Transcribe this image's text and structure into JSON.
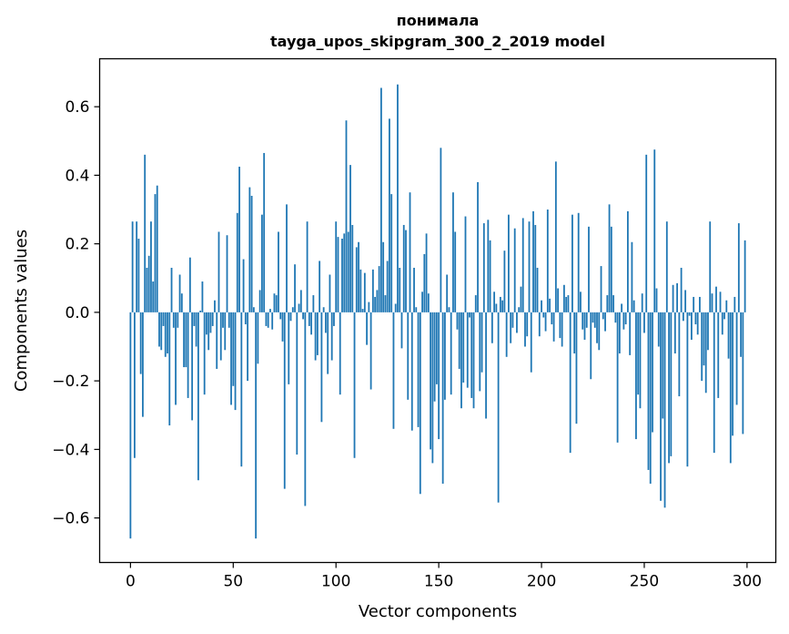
{
  "chart_data": {
    "type": "bar",
    "title": "понимала",
    "subtitle": "tayga_upos_skipgram_300_2_2019 model",
    "xlabel": "Vector components",
    "ylabel": "Components values",
    "xlim": [
      -15,
      314
    ],
    "ylim": [
      -0.73,
      0.74
    ],
    "x_ticks": [
      0,
      50,
      100,
      150,
      200,
      250,
      300
    ],
    "x_tick_labels": [
      "0",
      "50",
      "100",
      "150",
      "200",
      "250",
      "300"
    ],
    "y_ticks": [
      -0.6,
      -0.4,
      -0.2,
      0.0,
      0.2,
      0.4,
      0.6
    ],
    "y_tick_labels": [
      "−0.6",
      "−0.4",
      "−0.2",
      "0.0",
      "0.2",
      "0.4",
      "0.6"
    ],
    "grid": false,
    "bar_color": "#1f77b4",
    "values": [
      -0.66,
      0.265,
      -0.425,
      0.265,
      0.215,
      -0.18,
      -0.305,
      0.46,
      0.13,
      0.165,
      0.265,
      0.09,
      0.345,
      0.37,
      -0.1,
      -0.11,
      -0.04,
      -0.13,
      -0.12,
      -0.33,
      0.13,
      -0.045,
      -0.27,
      -0.045,
      0.11,
      0.055,
      -0.16,
      -0.16,
      -0.25,
      0.16,
      -0.315,
      -0.04,
      -0.1,
      -0.49,
      0.005,
      0.09,
      -0.24,
      -0.065,
      -0.11,
      -0.06,
      -0.04,
      0.035,
      -0.165,
      0.235,
      -0.14,
      -0.045,
      -0.11,
      0.225,
      -0.045,
      -0.27,
      -0.215,
      -0.285,
      0.29,
      0.425,
      -0.45,
      0.155,
      -0.035,
      -0.2,
      0.365,
      0.34,
      0.015,
      -0.66,
      -0.15,
      0.065,
      0.285,
      0.465,
      -0.04,
      -0.045,
      0.01,
      -0.05,
      0.055,
      0.05,
      0.235,
      -0.02,
      -0.085,
      -0.515,
      0.315,
      -0.21,
      -0.025,
      0.015,
      0.14,
      -0.415,
      0.025,
      0.065,
      -0.02,
      -0.565,
      0.265,
      -0.04,
      -0.065,
      0.05,
      -0.14,
      -0.125,
      0.15,
      -0.32,
      0.015,
      -0.06,
      -0.18,
      0.11,
      -0.14,
      -0.04,
      0.265,
      0.22,
      -0.24,
      0.215,
      0.23,
      0.56,
      0.235,
      0.43,
      0.255,
      -0.425,
      0.19,
      0.205,
      0.125,
      0.01,
      0.115,
      -0.095,
      0.03,
      -0.225,
      0.125,
      0.045,
      0.065,
      0.135,
      0.655,
      0.205,
      0.05,
      0.15,
      0.565,
      0.345,
      -0.34,
      0.025,
      0.665,
      0.13,
      -0.105,
      0.255,
      0.24,
      -0.255,
      0.35,
      -0.345,
      0.13,
      0.015,
      -0.335,
      -0.53,
      0.06,
      0.17,
      0.23,
      0.055,
      -0.4,
      -0.44,
      -0.26,
      -0.21,
      -0.37,
      0.48,
      -0.5,
      -0.255,
      0.11,
      0.015,
      -0.24,
      0.35,
      0.235,
      -0.05,
      -0.165,
      -0.28,
      -0.205,
      0.28,
      -0.22,
      -0.015,
      -0.25,
      -0.28,
      0.05,
      0.38,
      -0.23,
      -0.175,
      0.26,
      -0.31,
      0.27,
      0.21,
      -0.09,
      0.06,
      0.025,
      -0.555,
      0.045,
      0.035,
      0.18,
      -0.13,
      0.285,
      -0.09,
      -0.045,
      0.245,
      -0.06,
      0.015,
      0.075,
      0.275,
      -0.1,
      -0.07,
      0.265,
      -0.175,
      0.295,
      0.255,
      0.13,
      -0.07,
      0.035,
      -0.015,
      -0.055,
      0.3,
      0.04,
      -0.035,
      -0.085,
      0.44,
      0.07,
      -0.075,
      -0.1,
      0.08,
      0.045,
      0.05,
      -0.41,
      0.285,
      -0.12,
      -0.325,
      0.29,
      0.06,
      -0.05,
      -0.08,
      -0.045,
      0.25,
      -0.195,
      -0.03,
      -0.045,
      -0.09,
      -0.11,
      0.135,
      -0.02,
      -0.055,
      0.05,
      0.315,
      0.25,
      0.05,
      -0.03,
      -0.38,
      -0.12,
      0.025,
      -0.05,
      -0.035,
      0.295,
      -0.125,
      0.205,
      0.035,
      -0.37,
      -0.24,
      -0.28,
      0.055,
      -0.06,
      0.46,
      -0.46,
      -0.5,
      -0.35,
      0.475,
      0.07,
      -0.1,
      -0.55,
      -0.31,
      -0.57,
      0.265,
      -0.44,
      -0.42,
      0.08,
      -0.12,
      0.085,
      -0.245,
      0.13,
      -0.025,
      0.065,
      -0.45,
      -0.01,
      -0.08,
      0.045,
      -0.035,
      -0.065,
      0.045,
      -0.2,
      -0.155,
      -0.235,
      -0.11,
      0.265,
      0.055,
      -0.41,
      0.075,
      -0.25,
      0.06,
      -0.065,
      -0.02,
      0.035,
      -0.135,
      -0.44,
      -0.36,
      0.045,
      -0.27,
      0.26,
      -0.13,
      -0.355,
      0.21
    ]
  }
}
